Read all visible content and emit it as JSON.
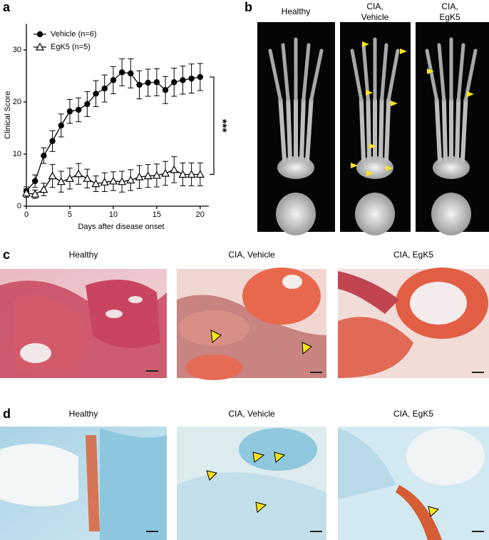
{
  "chart_data": {
    "type": "line",
    "xlabel": "Days after disease onset",
    "ylabel": "Clinical Score",
    "x": [
      0,
      1,
      2,
      3,
      4,
      5,
      6,
      7,
      8,
      9,
      10,
      11,
      12,
      13,
      14,
      15,
      16,
      17,
      18,
      19,
      20
    ],
    "xlim": [
      0,
      21
    ],
    "xticks": [
      0,
      5,
      10,
      15,
      20
    ],
    "ylim": [
      0,
      35
    ],
    "yticks": [
      0,
      10,
      20,
      30
    ],
    "legend": "upper left",
    "annotation": "***",
    "series": [
      {
        "name": "Vehicle (n=6)",
        "color": "#000000",
        "marker": "filled-circle",
        "values": [
          2.9,
          4.8,
          9.7,
          12.5,
          15.5,
          18.2,
          18.5,
          19.6,
          21.6,
          22.6,
          24.2,
          25.7,
          25.5,
          23.3,
          23.7,
          23.8,
          22.3,
          23.8,
          24.2,
          24.5,
          24.8
        ],
        "errors": [
          0.8,
          1.2,
          1.5,
          2,
          2.2,
          2.3,
          2.3,
          2.4,
          2.5,
          2.6,
          2.6,
          2.6,
          2.8,
          2.7,
          2.6,
          2.6,
          2.6,
          2.7,
          2.7,
          2.8,
          2.6
        ]
      },
      {
        "name": "EgK5 (n=5)",
        "color": "#000000",
        "marker": "open-triangle",
        "values": [
          2.5,
          2.3,
          3.2,
          5.8,
          4.7,
          5.3,
          6.2,
          5.3,
          4.3,
          4.6,
          4.8,
          4.7,
          5.0,
          5.6,
          5.8,
          5.9,
          6.3,
          7.0,
          6.1,
          6.1,
          6.1
        ],
        "errors": [
          0.8,
          0.8,
          1.2,
          2.2,
          2,
          2,
          2,
          1.8,
          1.5,
          1.8,
          1.8,
          2,
          2,
          2.2,
          2.2,
          2.2,
          2.3,
          2.5,
          2.2,
          2.2,
          2.2
        ]
      }
    ]
  },
  "panel_labels": [
    "a",
    "b",
    "c",
    "d"
  ],
  "panel_b": {
    "titles": [
      [
        "Healthy"
      ],
      [
        "CIA,",
        "Vehicle"
      ],
      [
        "CIA,",
        "EgK5"
      ]
    ]
  },
  "panel_c": {
    "titles": [
      "Healthy",
      "CIA, Vehicle",
      "CIA, EgK5"
    ]
  },
  "panel_d": {
    "titles": [
      "Healthy",
      "CIA, Vehicle",
      "CIA, EgK5"
    ]
  }
}
